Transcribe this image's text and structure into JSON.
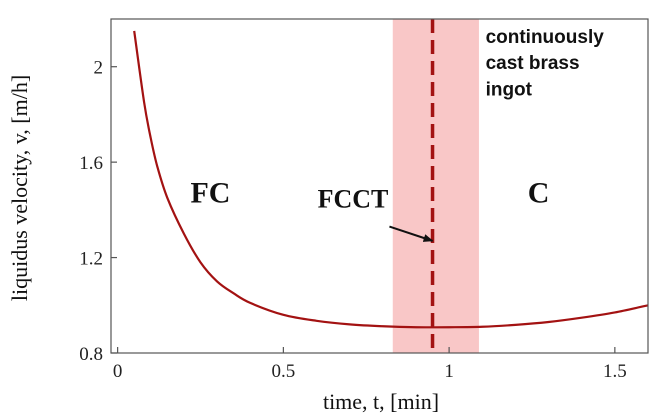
{
  "chart_data": {
    "type": "line",
    "title": "",
    "xlabel": "time, t, [min]",
    "ylabel": "liquidus velocity, v, [m/h]",
    "xlim": [
      -0.02,
      1.6
    ],
    "ylim": [
      0.8,
      2.2
    ],
    "x_ticks": [
      0,
      0.5,
      1,
      1.5
    ],
    "x_tick_labels": [
      "0",
      "0.5",
      "1",
      "1.5"
    ],
    "y_ticks": [
      0.8,
      1.2,
      1.6,
      2.0
    ],
    "y_tick_labels": [
      "0.8",
      "1.2",
      "1.6",
      "2"
    ],
    "grid": false,
    "series": [
      {
        "color": "#a31212",
        "x": [
          0.05,
          0.08,
          0.1,
          0.12,
          0.15,
          0.2,
          0.25,
          0.3,
          0.35,
          0.4,
          0.5,
          0.6,
          0.7,
          0.8,
          0.9,
          1.0,
          1.1,
          1.2,
          1.3,
          1.4,
          1.5,
          1.6
        ],
        "y": [
          2.15,
          1.85,
          1.7,
          1.58,
          1.45,
          1.3,
          1.18,
          1.1,
          1.05,
          1.01,
          0.96,
          0.935,
          0.92,
          0.912,
          0.908,
          0.908,
          0.91,
          0.918,
          0.93,
          0.948,
          0.97,
          1.0
        ]
      }
    ],
    "shaded_band": {
      "x_start": 0.83,
      "x_end": 1.09,
      "color": "#f9c7c7"
    },
    "vline": {
      "x": 0.95,
      "color": "#a31212"
    },
    "region_labels": [
      {
        "text": "FC",
        "x": 0.28,
        "y": 1.43
      },
      {
        "text": "C",
        "x": 1.27,
        "y": 1.43
      }
    ],
    "annotation": {
      "text": "FCCT",
      "text_x": 0.71,
      "text_y": 1.41,
      "arrow_from_x": 0.82,
      "arrow_from_y": 1.33,
      "arrow_to_x": 0.95,
      "arrow_to_y": 1.27
    },
    "note_lines": [
      "continuously",
      "cast brass",
      "ingot"
    ],
    "note_x": 1.11,
    "note_y": [
      2.1,
      1.99,
      1.88
    ]
  }
}
